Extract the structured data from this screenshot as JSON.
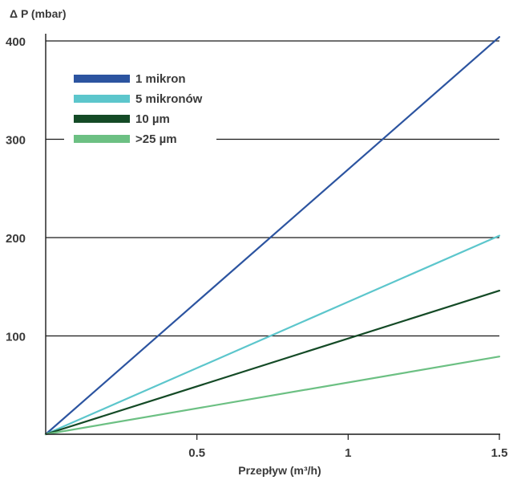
{
  "chart_data": {
    "type": "line",
    "title": "",
    "ylabel": "Δ P (mbar)",
    "xlabel": "Przepływ (m³/h)",
    "xlim": [
      0,
      1.5
    ],
    "ylim": [
      0,
      400
    ],
    "x_ticks": [
      {
        "value": 0.5,
        "label": "0.5"
      },
      {
        "value": 1,
        "label": "1"
      },
      {
        "value": 1.5,
        "label": "1.5"
      }
    ],
    "y_ticks": [
      {
        "value": 100,
        "label": "100"
      },
      {
        "value": 200,
        "label": "200"
      },
      {
        "value": 300,
        "label": "300"
      },
      {
        "value": 400,
        "label": "400"
      }
    ],
    "grid": "horizontal",
    "legend_position": "top-left",
    "series": [
      {
        "name": "1 mikron",
        "color": "#2c54a0",
        "x": [
          0,
          1.5
        ],
        "y": [
          0,
          404
        ]
      },
      {
        "name": "5 mikronów",
        "color": "#5cc6cc",
        "x": [
          0,
          1.5
        ],
        "y": [
          0,
          202
        ]
      },
      {
        "name": "10 µm",
        "color": "#144a26",
        "x": [
          0,
          1.5
        ],
        "y": [
          0,
          146
        ]
      },
      {
        "name": ">25 µm",
        "color": "#6cc083",
        "x": [
          0,
          1.5
        ],
        "y": [
          0,
          79
        ]
      }
    ]
  }
}
